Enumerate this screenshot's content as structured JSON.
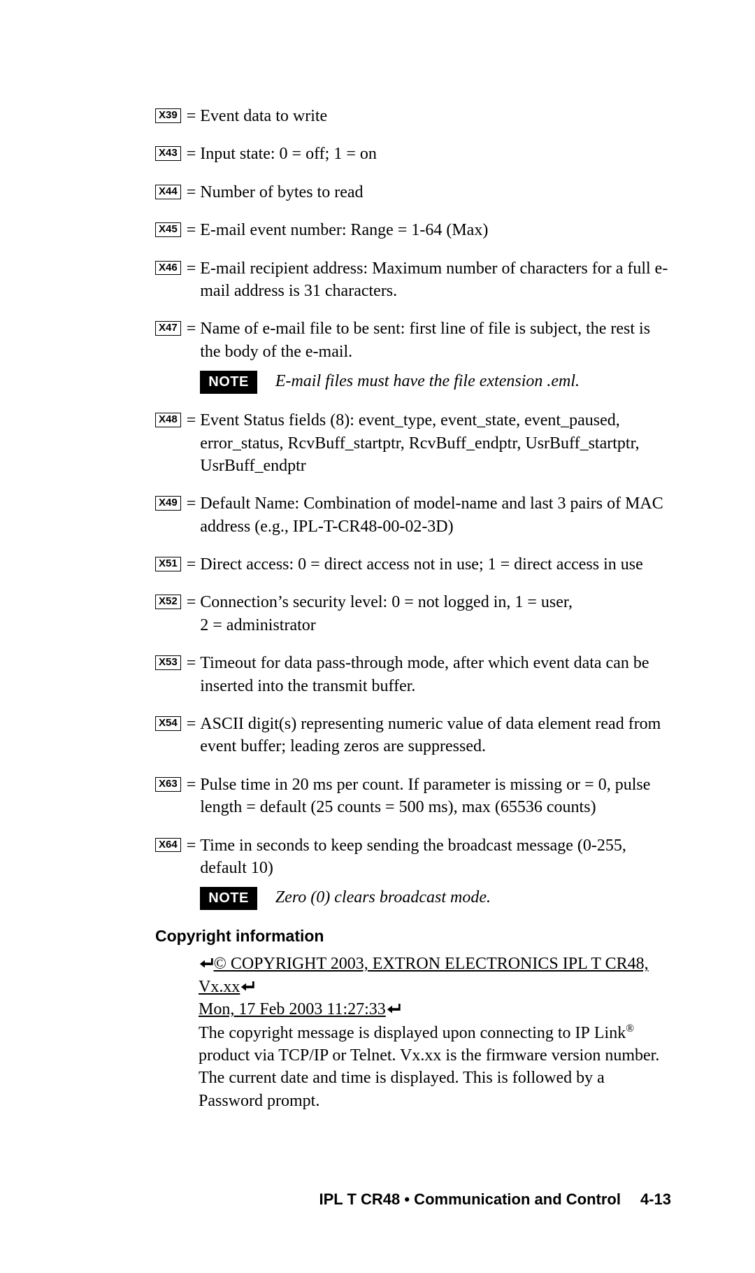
{
  "defs": [
    {
      "code": "X39",
      "text": "Event data to write"
    },
    {
      "code": "X43",
      "text": "Input state: 0 = off; 1 = on"
    },
    {
      "code": "X44",
      "text": "Number of bytes to read"
    },
    {
      "code": "X45",
      "text": "E-mail event number:  Range = 1-64 (Max)"
    },
    {
      "code": "X46",
      "text": "E-mail recipient address: Maximum number of characters for a full e-mail address is 31 characters."
    },
    {
      "code": "X47",
      "text": "Name of e-mail file to be sent: first line of file is subject, the rest is the body of the e-mail.",
      "note": "E-mail files must have the file extension .eml."
    },
    {
      "code": "X48",
      "text": "Event Status fields (8):  event_type, event_state, event_paused, error_status, RcvBuff_startptr, RcvBuff_endptr, UsrBuff_startptr, UsrBuff_endptr"
    },
    {
      "code": "X49",
      "text": "Default Name:  Combination of model-name and last 3 pairs of MAC address (e.g., IPL-T-CR48-00-02-3D)"
    },
    {
      "code": "X51",
      "text": "Direct access: 0 = direct access not in use; 1 = direct access in use"
    },
    {
      "code": "X52",
      "text": "Connection’s security level:  0 = not logged in, 1 = user, 2 = administrator"
    },
    {
      "code": "X53",
      "text": "Timeout for data pass-through mode, after which event data can be inserted into the transmit buffer."
    },
    {
      "code": "X54",
      "text": "ASCII digit(s) representing numeric value of data element read from event buffer; leading zeros are suppressed."
    },
    {
      "code": "X63",
      "text": "Pulse time in 20 ms per count.  If parameter is missing or = 0, pulse length = default (25 counts = 500 ms), max (65536 counts)"
    },
    {
      "code": "X64",
      "text": "Time in seconds to keep sending the broadcast message (0-255, default 10)",
      "note": "Zero (0) clears broadcast mode."
    }
  ],
  "noteLabel": "NOTE",
  "copyright": {
    "heading": "Copyright information",
    "line1": "© COPYRIGHT 2003, EXTRON ELECTRONICS IPL T CR48, Vx.xx",
    "line2": "Mon, 17 Feb 2003 11:27:33",
    "body_a": "The copyright message is displayed upon connecting to IP Link",
    "body_b": " product via TCP/IP or Telnet.  Vx.xx is the firmware version number.  The current date and time is displayed.  This is followed by a Password prompt."
  },
  "footer": {
    "title": "IPL T CR48 • Communication and Control",
    "page": "4-13"
  }
}
